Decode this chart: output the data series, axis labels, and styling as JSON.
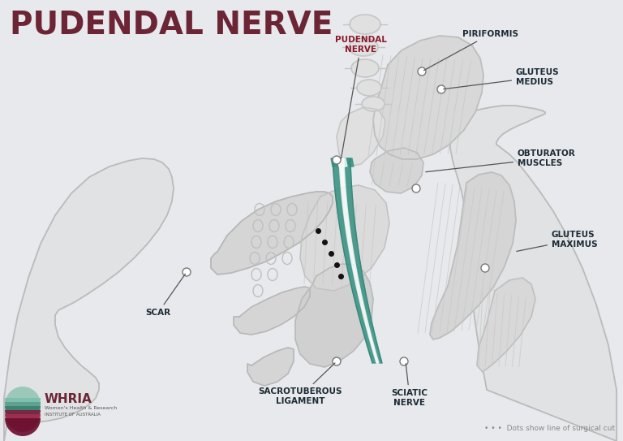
{
  "title": "PUDENDAL NERVE",
  "title_color": "#6B2535",
  "title_fontsize": 28,
  "bg_color": "#E8E9EC",
  "label_color": "#1C2B35",
  "teal_color": "#3D9485",
  "anatomy_fill": "#D2D2D2",
  "anatomy_edge": "#B5B5B5",
  "anatomy_light": "#DEDEDE",
  "pudendal_label_color": "#8B1A2B",
  "arrow_color": "#555555",
  "dot_color": "#111111",
  "footer_note": "• • •  Dots show line of surgical cut",
  "whria_text": "WHRIA",
  "whria_sub1": "Women's Health & Research",
  "whria_sub2": "INSTITUTE OF AUSTRALIA",
  "label_fontsize": 7.5
}
